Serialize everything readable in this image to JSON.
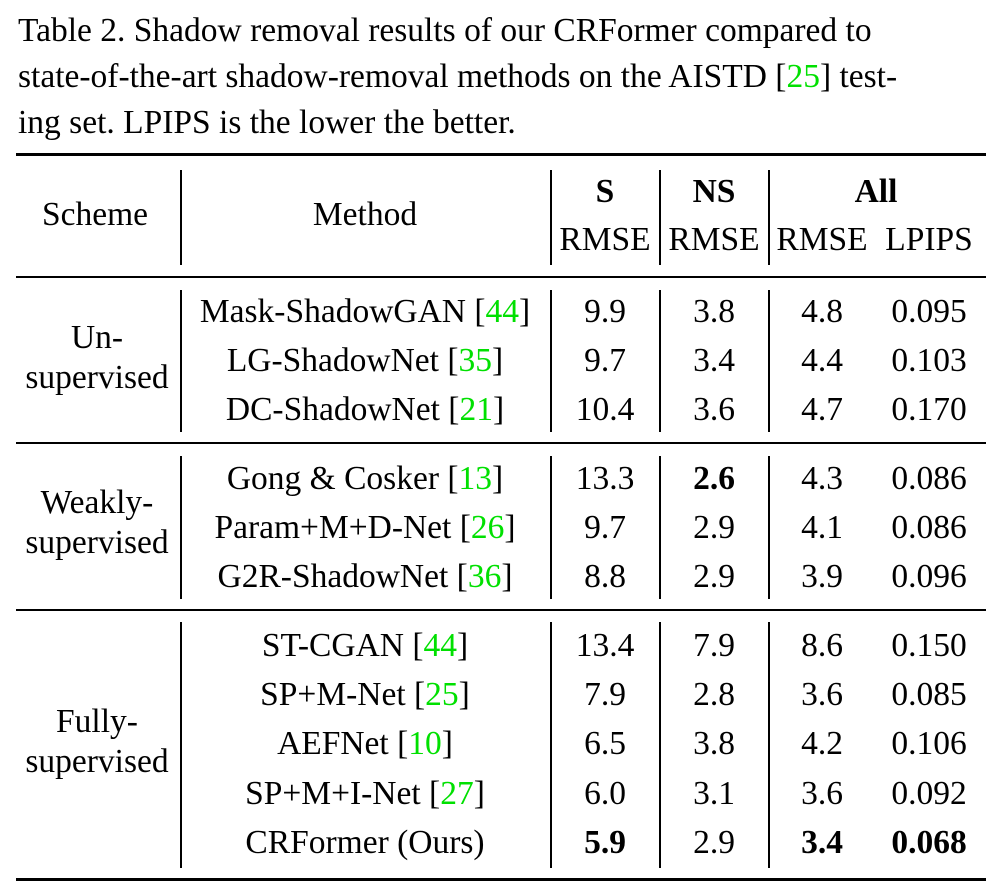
{
  "caption": {
    "line1_pre": "Table 2.   Shadow removal results of our CRFormer compared to",
    "line2_pre": "state-of-the-art shadow-removal methods on the AISTD [",
    "line2_cite": "25",
    "line2_post": "] test-",
    "line3": "ing set. LPIPS is the lower the better."
  },
  "header": {
    "scheme": "Scheme",
    "method": "Method",
    "s": "S",
    "ns": "NS",
    "all": "All",
    "rmse": "RMSE",
    "lpips": "LPIPS"
  },
  "groups": [
    {
      "scheme_line1": "Un-",
      "scheme_line2": "supervised",
      "rows": [
        {
          "method": "Mask-ShadowGAN [",
          "cite": "44",
          "close": "]",
          "s": "9.9",
          "ns": "3.8",
          "all_rmse": "4.8",
          "lpips": "0.095"
        },
        {
          "method": "LG-ShadowNet [",
          "cite": "35",
          "close": "]",
          "s": "9.7",
          "ns": "3.4",
          "all_rmse": "4.4",
          "lpips": "0.103"
        },
        {
          "method": "DC-ShadowNet [",
          "cite": "21",
          "close": "]",
          "s": "10.4",
          "ns": "3.6",
          "all_rmse": "4.7",
          "lpips": "0.170"
        }
      ]
    },
    {
      "scheme_line1": "Weakly-",
      "scheme_line2": "supervised",
      "rows": [
        {
          "method": "Gong & Cosker [",
          "cite": "13",
          "close": "]",
          "s": "13.3",
          "ns": "2.6",
          "all_rmse": "4.3",
          "lpips": "0.086"
        },
        {
          "method": "Param+M+D-Net [",
          "cite": "26",
          "close": "]",
          "s": "9.7",
          "ns": "2.9",
          "all_rmse": "4.1",
          "lpips": "0.086"
        },
        {
          "method": "G2R-ShadowNet [",
          "cite": "36",
          "close": "]",
          "s": "8.8",
          "ns": "2.9",
          "all_rmse": "3.9",
          "lpips": "0.096"
        }
      ]
    },
    {
      "scheme_line1": "Fully-",
      "scheme_line2": "supervised",
      "rows": [
        {
          "method": "ST-CGAN [",
          "cite": "44",
          "close": "]",
          "s": "13.4",
          "ns": "7.9",
          "all_rmse": "8.6",
          "lpips": "0.150"
        },
        {
          "method": "SP+M-Net [",
          "cite": "25",
          "close": "]",
          "s": "7.9",
          "ns": "2.8",
          "all_rmse": "3.6",
          "lpips": "0.085"
        },
        {
          "method": "AEFNet [",
          "cite": "10",
          "close": "]",
          "s": "6.5",
          "ns": "3.8",
          "all_rmse": "4.2",
          "lpips": "0.106"
        },
        {
          "method": "SP+M+I-Net [",
          "cite": "27",
          "close": "]",
          "s": "6.0",
          "ns": "3.1",
          "all_rmse": "3.6",
          "lpips": "0.092"
        },
        {
          "method": "CRFormer (Ours)",
          "cite": "",
          "close": "",
          "s": "5.9",
          "ns": "2.9",
          "all_rmse": "3.4",
          "lpips": "0.068"
        }
      ]
    }
  ]
}
